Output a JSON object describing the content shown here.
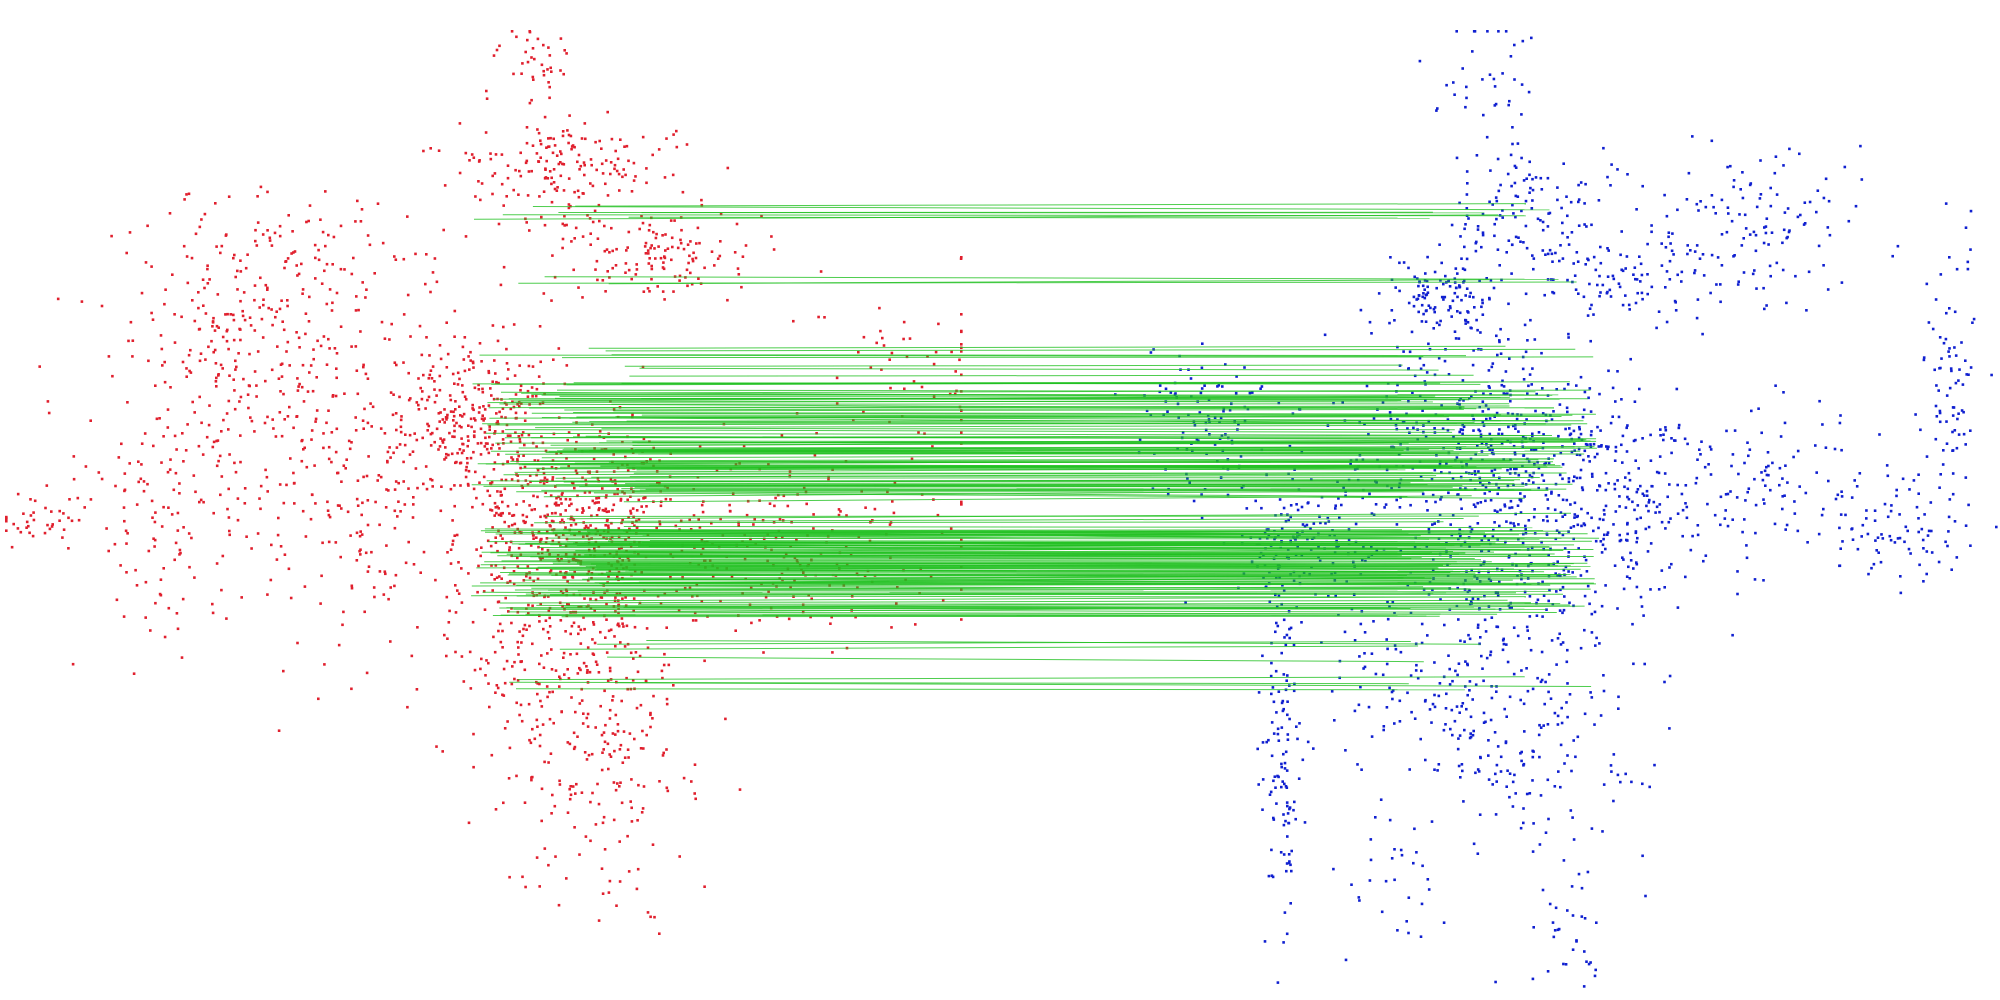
{
  "colors": {
    "background": "#ffffff",
    "left_cloud": "#e0202e",
    "right_cloud": "#1020d0",
    "match_lines": "#22c022"
  },
  "left_cloud": {
    "seed": 1337,
    "point_count": 2600
  },
  "right_cloud": {
    "seed": 4242,
    "point_count": 2400
  },
  "matches": {
    "seed": 777,
    "count": 260
  }
}
